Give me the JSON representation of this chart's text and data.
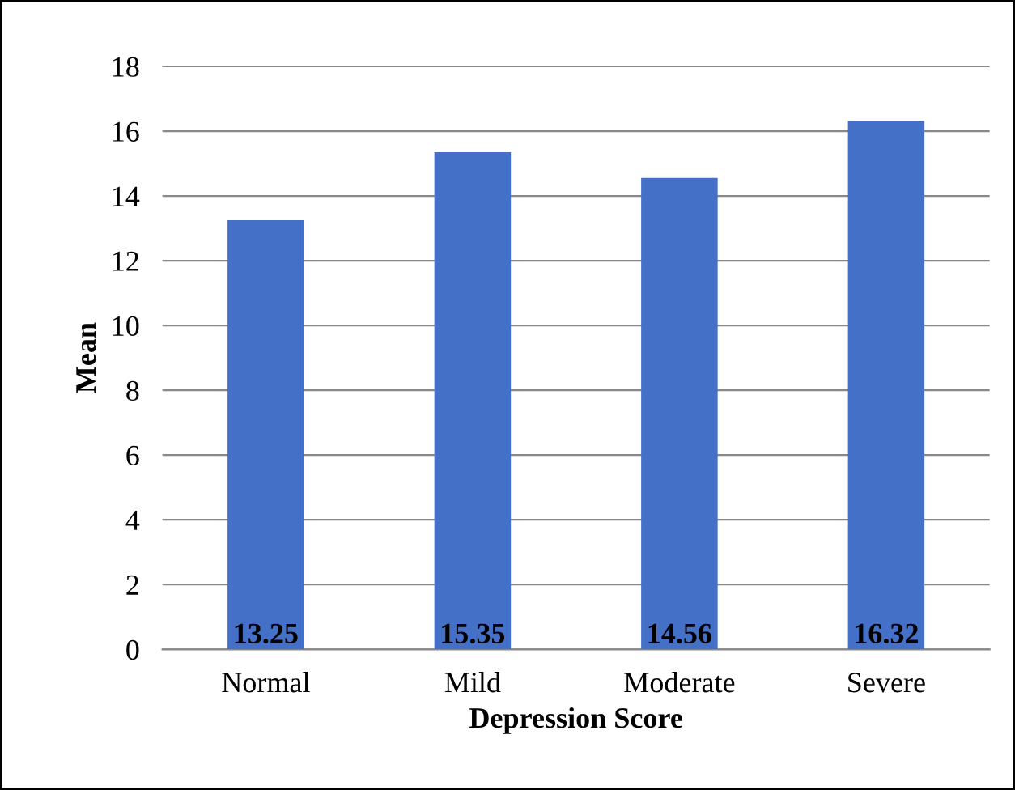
{
  "chart_data": {
    "type": "bar",
    "xlabel": "Depression Score",
    "ylabel": "Mean",
    "categories": [
      "Normal",
      "Mild",
      "Moderate",
      "Severe"
    ],
    "values": [
      13.25,
      15.35,
      14.56,
      16.32
    ],
    "color": "#4470c8",
    "ylim": [
      0,
      18
    ],
    "yticks": [
      0,
      2,
      4,
      6,
      8,
      10,
      12,
      14,
      16,
      18
    ],
    "grid": "y",
    "data_labels": true
  }
}
